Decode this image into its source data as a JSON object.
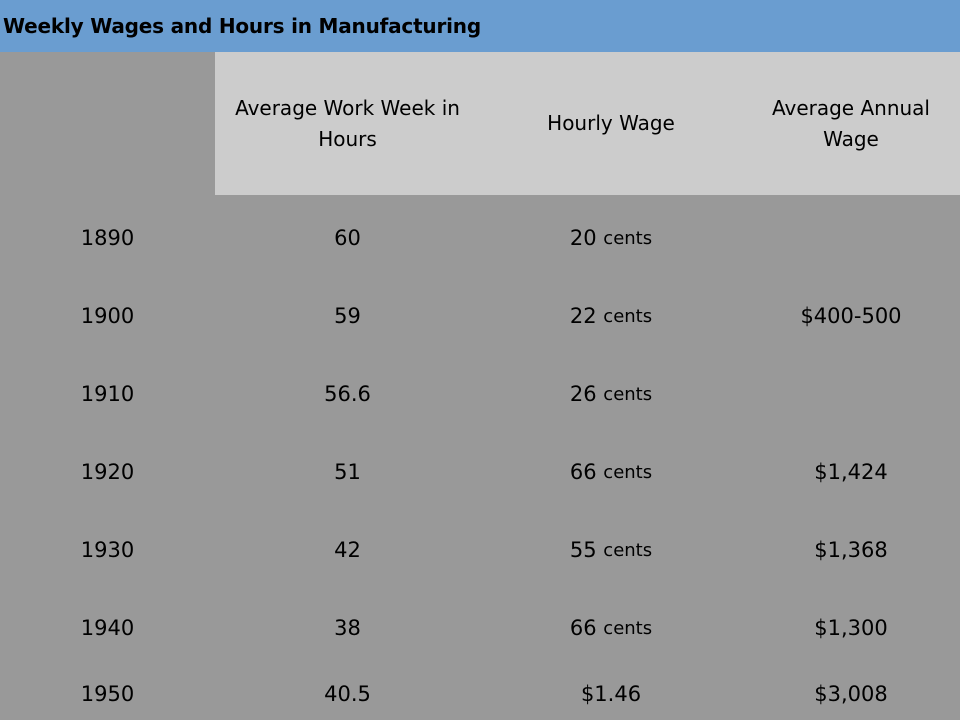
{
  "title": "Weekly Wages and Hours in Manufacturing",
  "colors": {
    "title_bar": "#6a9dd0",
    "header_band": "#cccccc",
    "body": "#999999"
  },
  "columns": {
    "year": "",
    "hours": "Average Work Week in Hours",
    "wage": "Hourly Wage",
    "annual": "Average Annual Wage"
  },
  "rows": [
    {
      "year": "1890",
      "hours": "60",
      "wage_amount": "20",
      "wage_unit": "cents",
      "annual": ""
    },
    {
      "year": "1900",
      "hours": "59",
      "wage_amount": "22",
      "wage_unit": "cents",
      "annual": "$400-500"
    },
    {
      "year": "1910",
      "hours": "56.6",
      "wage_amount": "26",
      "wage_unit": "cents",
      "annual": ""
    },
    {
      "year": "1920",
      "hours": "51",
      "wage_amount": "66",
      "wage_unit": "cents",
      "annual": "$1,424"
    },
    {
      "year": "1930",
      "hours": "42",
      "wage_amount": "55",
      "wage_unit": "cents",
      "annual": "$1,368"
    },
    {
      "year": "1940",
      "hours": "38",
      "wage_amount": "66",
      "wage_unit": "cents",
      "annual": "$1,300"
    },
    {
      "year": "1950",
      "hours": "40.5",
      "wage_amount": "$1.46",
      "wage_unit": "",
      "annual": "$3,008"
    }
  ]
}
